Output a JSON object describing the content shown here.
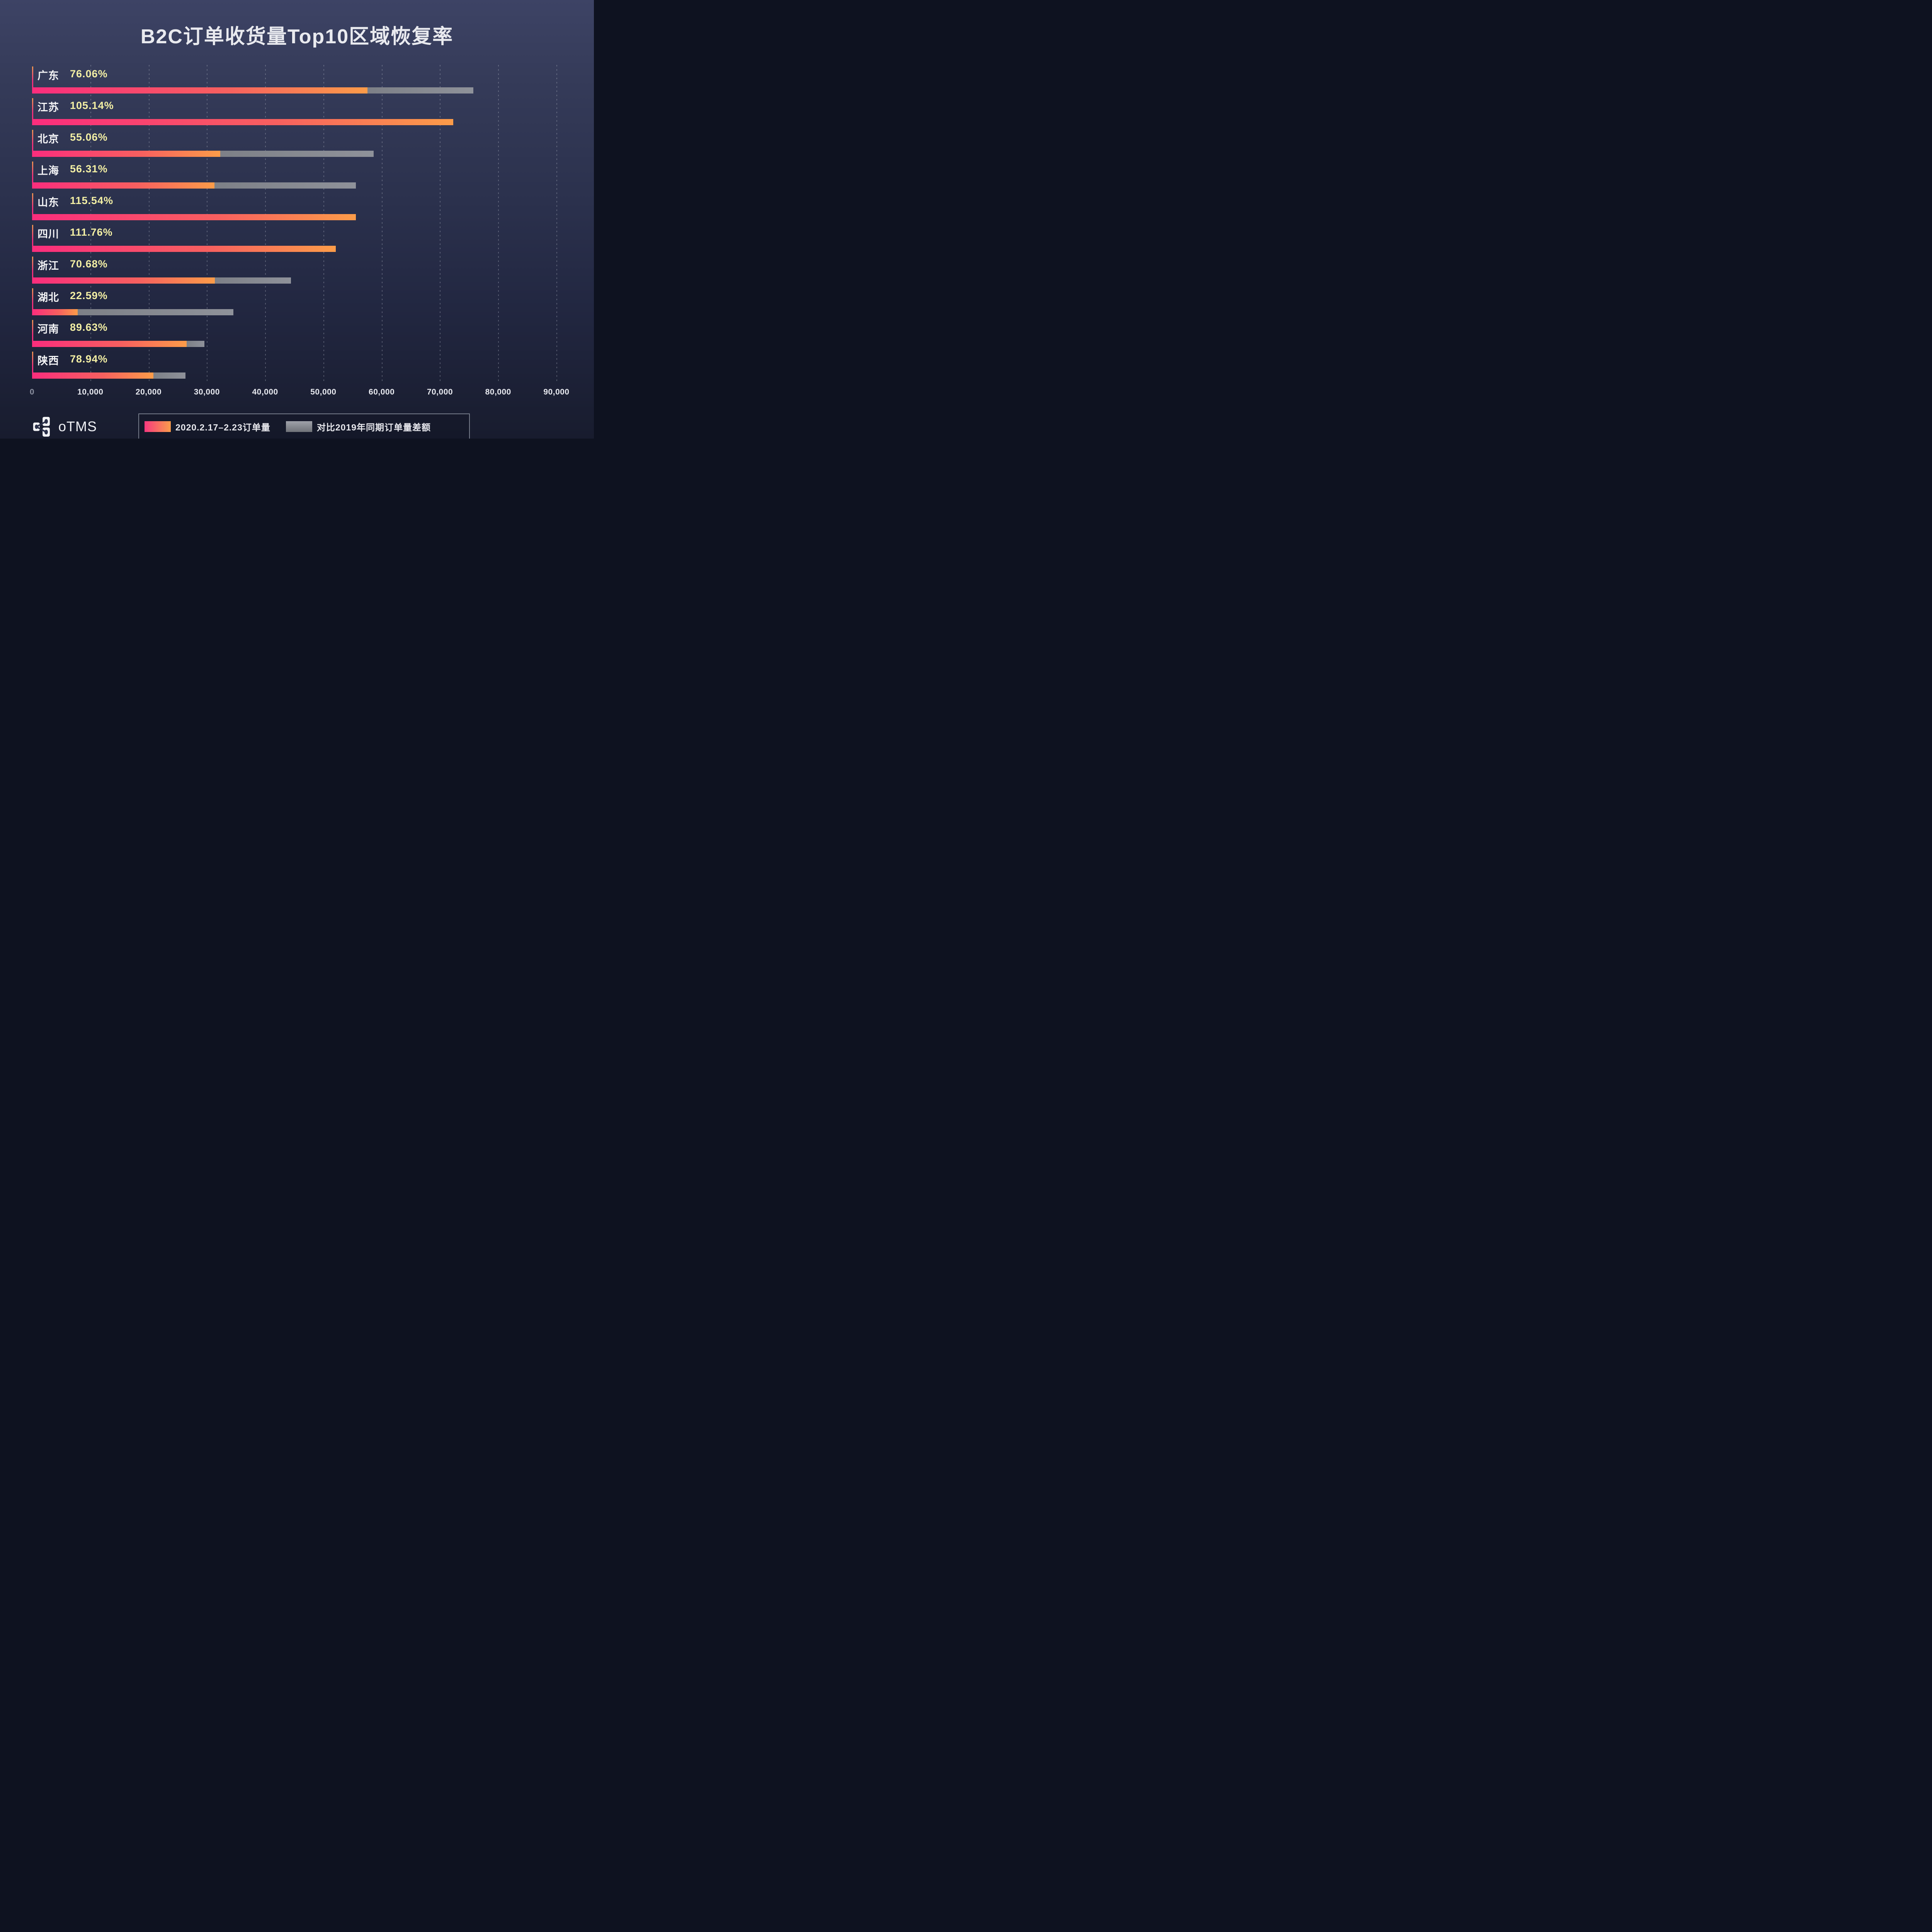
{
  "title": "B2C订单收货量Top10区域恢复率",
  "chart_data": {
    "type": "bar",
    "orientation": "horizontal",
    "title": "B2C订单收货量Top10区域恢复率",
    "categories": [
      "广东",
      "江苏",
      "北京",
      "上海",
      "山东",
      "四川",
      "浙江",
      "湖北",
      "河南",
      "陕西"
    ],
    "rate_labels": [
      "76.06%",
      "105.14%",
      "55.06%",
      "56.31%",
      "115.54%",
      "111.76%",
      "70.68%",
      "22.59%",
      "89.63%",
      "78.94%"
    ],
    "recovery_rates_pct": [
      76.06,
      105.14,
      55.06,
      56.31,
      115.54,
      111.76,
      70.68,
      22.59,
      89.63,
      78.94
    ],
    "series": [
      {
        "name": "2020.2.17–2.23订单量",
        "values_est": [
          57600,
          72300,
          32300,
          31300,
          55600,
          52100,
          31400,
          7800,
          26500,
          20800
        ],
        "color_start": "#fb2d7d",
        "color_end": "#fc9c49"
      },
      {
        "name": "对比2019年同期订单量差额",
        "values_est": [
          18130,
          0,
          26360,
          24280,
          0,
          0,
          13020,
          26730,
          3070,
          5550
        ],
        "color": "#85888f"
      }
    ],
    "totals_2019_est": [
      75730,
      68770,
      58660,
      55580,
      48120,
      46620,
      44420,
      34530,
      29570,
      26350
    ],
    "x_ticks": [
      "0",
      "10,000",
      "20,000",
      "30,000",
      "40,000",
      "50,000",
      "60,000",
      "70,000",
      "80,000",
      "90,000"
    ],
    "xlim": [
      0,
      90000
    ],
    "grid": "dotted-vertical",
    "legend_position": "bottom"
  },
  "legend": {
    "items": [
      {
        "label": "2020.2.17–2.23订单量",
        "swatch": "pink-orange-gradient"
      },
      {
        "label": "对比2019年同期订单量差额",
        "swatch": "gray-gradient"
      }
    ]
  },
  "footer": {
    "logo_text": "oTMS"
  },
  "colors": {
    "background_top": "#3d4365",
    "background_bottom": "#181c2e",
    "bar_pink_start": "#fb2d7d",
    "bar_pink_end": "#fc9c49",
    "bar_gray": "#85888f",
    "rate_text": "#f3efa4",
    "label_text": "#f5f5f7",
    "tick_zero": "#8b90a0",
    "tick_text": "#e6e8ee"
  }
}
